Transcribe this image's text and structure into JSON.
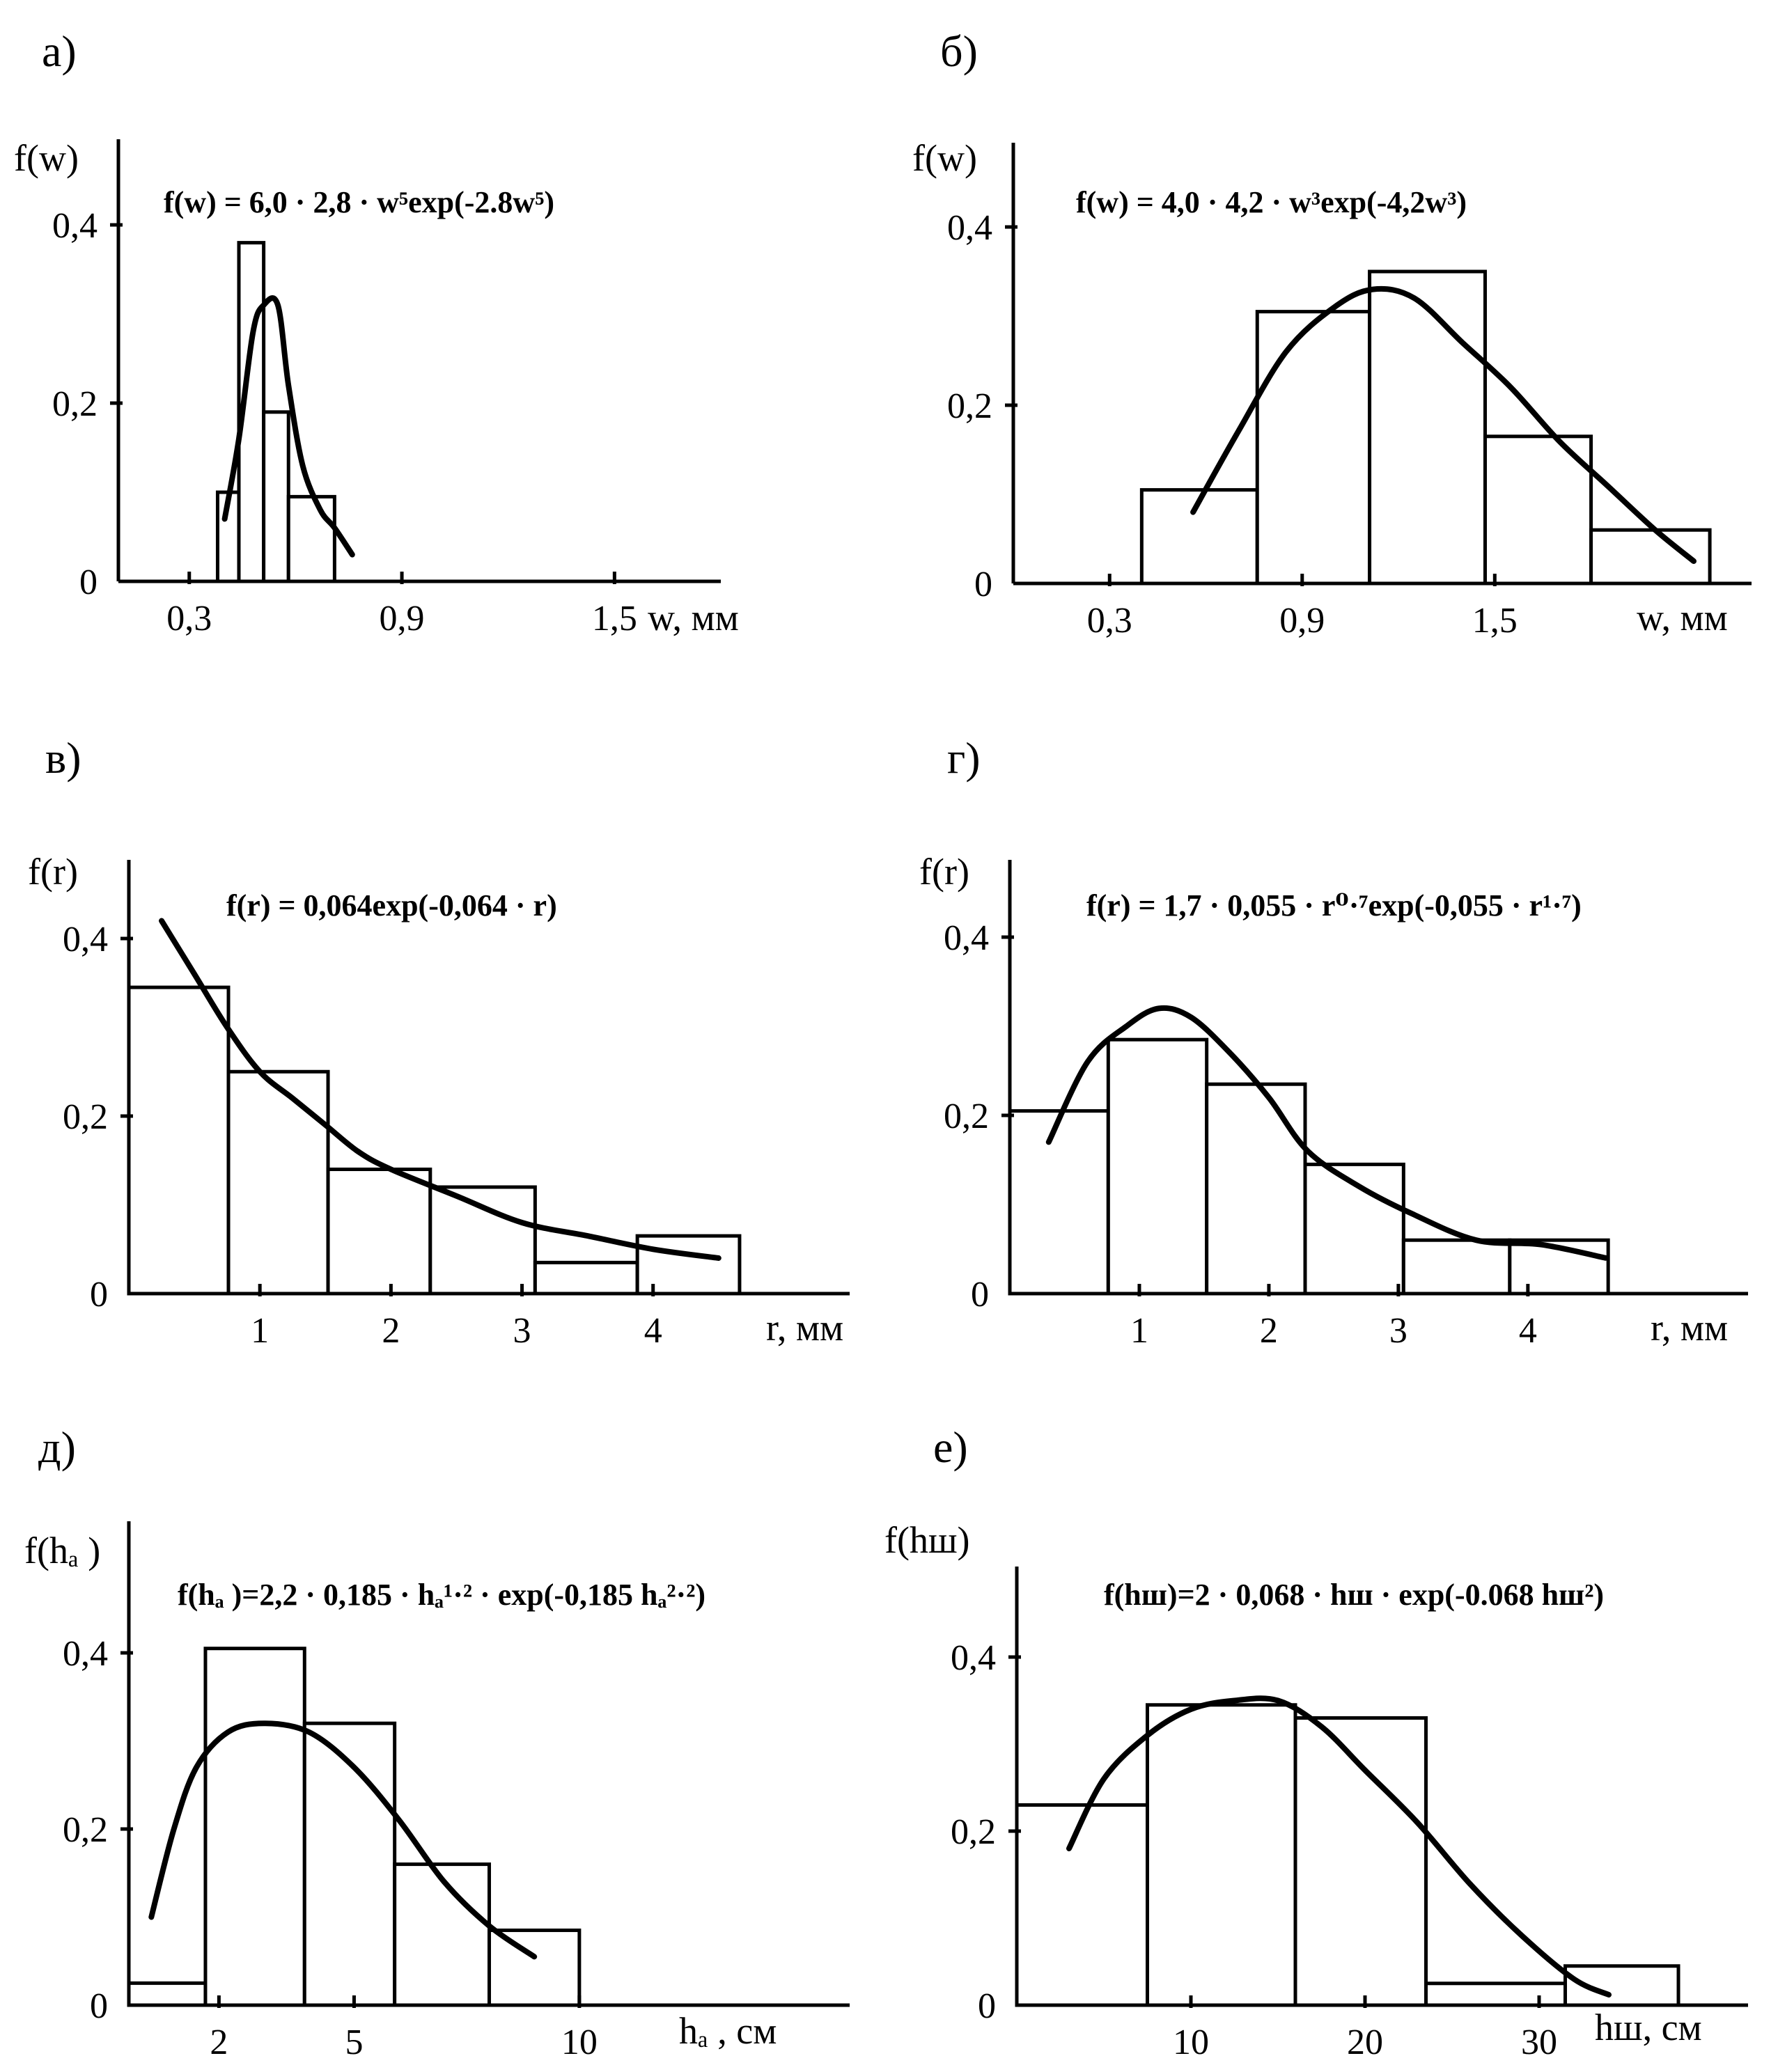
{
  "chart_data": [
    {
      "id": "a",
      "type": "bar",
      "panel_label": "а)",
      "ylabel": "f(w)",
      "xlabel": "w, мм",
      "formula": "f(w) = 6,0 · 2,8 · w⁵exp(-2.8w⁵)",
      "xlim": [
        0.1,
        1.8
      ],
      "ylim": [
        0,
        0.4
      ],
      "x_ticks": [
        {
          "value": 0.3,
          "label": "0,3"
        },
        {
          "value": 0.9,
          "label": "0,9"
        },
        {
          "value": 1.5,
          "label": "1,5"
        }
      ],
      "y_ticks": [
        {
          "value": 0,
          "label": "0"
        },
        {
          "value": 0.2,
          "label": "0,2"
        },
        {
          "value": 0.4,
          "label": "0,4"
        }
      ],
      "bins": [
        {
          "from": 0.38,
          "to": 0.44,
          "value": 0.1
        },
        {
          "from": 0.44,
          "to": 0.51,
          "value": 0.38
        },
        {
          "from": 0.51,
          "to": 0.58,
          "value": 0.19
        },
        {
          "from": 0.58,
          "to": 0.71,
          "value": 0.095
        }
      ],
      "curve": {
        "x": [
          0.4,
          0.44,
          0.48,
          0.51,
          0.55,
          0.58,
          0.62,
          0.67,
          0.71,
          0.76
        ],
        "y": [
          0.07,
          0.16,
          0.28,
          0.31,
          0.31,
          0.22,
          0.13,
          0.08,
          0.06,
          0.03
        ]
      }
    },
    {
      "id": "b",
      "type": "bar",
      "panel_label": "б)",
      "ylabel": "f(w)",
      "xlabel": "w, мм",
      "formula": "f(w) = 4,0 · 4,2 · w³exp(-4,2w³)",
      "xlim": [
        0.0,
        2.3
      ],
      "ylim": [
        0,
        0.4
      ],
      "x_ticks": [
        {
          "value": 0.3,
          "label": "0,3"
        },
        {
          "value": 0.9,
          "label": "0,9"
        },
        {
          "value": 1.5,
          "label": "1,5"
        }
      ],
      "y_ticks": [
        {
          "value": 0,
          "label": "0"
        },
        {
          "value": 0.2,
          "label": "0,2"
        },
        {
          "value": 0.4,
          "label": "0,4"
        }
      ],
      "bins": [
        {
          "from": 0.4,
          "to": 0.76,
          "value": 0.105
        },
        {
          "from": 0.76,
          "to": 1.11,
          "value": 0.305
        },
        {
          "from": 1.11,
          "to": 1.47,
          "value": 0.35
        },
        {
          "from": 1.47,
          "to": 1.8,
          "value": 0.165
        },
        {
          "from": 1.8,
          "to": 2.17,
          "value": 0.06
        }
      ],
      "curve": {
        "x": [
          0.56,
          0.7,
          0.85,
          1.0,
          1.12,
          1.25,
          1.4,
          1.55,
          1.7,
          1.85,
          2.0,
          2.12
        ],
        "y": [
          0.08,
          0.17,
          0.26,
          0.31,
          0.33,
          0.32,
          0.27,
          0.22,
          0.16,
          0.11,
          0.06,
          0.025
        ]
      }
    },
    {
      "id": "v",
      "type": "bar",
      "panel_label": "в)",
      "ylabel": "f(r)",
      "xlabel": "r, мм",
      "formula": "f(r) = 0,064exp(-0,064 · r)",
      "xlim": [
        0.0,
        5.5
      ],
      "ylim": [
        0,
        0.4
      ],
      "x_ticks": [
        {
          "value": 1,
          "label": "1"
        },
        {
          "value": 2,
          "label": "2"
        },
        {
          "value": 3,
          "label": "3"
        },
        {
          "value": 4,
          "label": "4"
        }
      ],
      "y_ticks": [
        {
          "value": 0,
          "label": "0"
        },
        {
          "value": 0.2,
          "label": "0,2"
        },
        {
          "value": 0.4,
          "label": "0,4"
        }
      ],
      "bins": [
        {
          "from": 0.0,
          "to": 0.76,
          "value": 0.345
        },
        {
          "from": 0.76,
          "to": 1.52,
          "value": 0.25
        },
        {
          "from": 1.52,
          "to": 2.3,
          "value": 0.14
        },
        {
          "from": 2.3,
          "to": 3.1,
          "value": 0.12
        },
        {
          "from": 3.1,
          "to": 3.88,
          "value": 0.035
        },
        {
          "from": 3.88,
          "to": 4.66,
          "value": 0.065
        }
      ],
      "curve": {
        "x": [
          0.25,
          0.5,
          0.75,
          1.0,
          1.25,
          1.5,
          1.75,
          2.0,
          2.5,
          3.0,
          3.5,
          4.0,
          4.5
        ],
        "y": [
          0.42,
          0.36,
          0.3,
          0.25,
          0.22,
          0.19,
          0.16,
          0.14,
          0.11,
          0.08,
          0.065,
          0.05,
          0.04
        ]
      }
    },
    {
      "id": "g",
      "type": "bar",
      "panel_label": "г)",
      "ylabel": "f(r)",
      "xlabel": "r, мм",
      "formula": "f(r) = 1,7 · 0,055 · r⁰·⁷exp(-0,055 · r¹·⁷)",
      "xlim": [
        0.0,
        5.7
      ],
      "ylim": [
        0,
        0.4
      ],
      "x_ticks": [
        {
          "value": 1,
          "label": "1"
        },
        {
          "value": 2,
          "label": "2"
        },
        {
          "value": 3,
          "label": "3"
        },
        {
          "value": 4,
          "label": "4"
        }
      ],
      "y_ticks": [
        {
          "value": 0,
          "label": "0"
        },
        {
          "value": 0.2,
          "label": "0,2"
        },
        {
          "value": 0.4,
          "label": "0,4"
        }
      ],
      "bins": [
        {
          "from": 0.0,
          "to": 0.76,
          "value": 0.205
        },
        {
          "from": 0.76,
          "to": 1.52,
          "value": 0.285
        },
        {
          "from": 1.52,
          "to": 2.28,
          "value": 0.235
        },
        {
          "from": 2.28,
          "to": 3.04,
          "value": 0.145
        },
        {
          "from": 3.04,
          "to": 3.86,
          "value": 0.06
        },
        {
          "from": 3.86,
          "to": 4.62,
          "value": 0.06
        }
      ],
      "curve": {
        "x": [
          0.3,
          0.6,
          0.9,
          1.15,
          1.4,
          1.7,
          2.0,
          2.3,
          2.7,
          3.1,
          3.6,
          4.1,
          4.6
        ],
        "y": [
          0.17,
          0.26,
          0.3,
          0.32,
          0.31,
          0.27,
          0.22,
          0.16,
          0.12,
          0.09,
          0.06,
          0.055,
          0.04
        ]
      }
    },
    {
      "id": "d",
      "type": "bar",
      "panel_label": "д)",
      "ylabel": "f(hₐ )",
      "xlabel": "hₐ , см",
      "formula": "f(hₐ )=2,2 · 0,185 · hₐ¹·² · exp(-0,185 hₐ²·²)",
      "xlim": [
        0.0,
        16.0
      ],
      "ylim": [
        0,
        0.4
      ],
      "x_ticks": [
        {
          "value": 2,
          "label": "2"
        },
        {
          "value": 5,
          "label": "5"
        },
        {
          "value": 10,
          "label": "10"
        }
      ],
      "y_ticks": [
        {
          "value": 0,
          "label": "0"
        },
        {
          "value": 0.2,
          "label": "0,2"
        },
        {
          "value": 0.4,
          "label": "0,4"
        }
      ],
      "bins": [
        {
          "from": 0.0,
          "to": 1.7,
          "value": 0.025
        },
        {
          "from": 1.7,
          "to": 3.9,
          "value": 0.405
        },
        {
          "from": 3.9,
          "to": 5.9,
          "value": 0.32
        },
        {
          "from": 5.9,
          "to": 8.0,
          "value": 0.16
        },
        {
          "from": 8.0,
          "to": 10.0,
          "value": 0.085
        }
      ],
      "curve": {
        "x": [
          0.5,
          1.0,
          1.5,
          2.2,
          3.0,
          4.0,
          5.0,
          6.0,
          7.0,
          8.0,
          9.0
        ],
        "y": [
          0.1,
          0.2,
          0.27,
          0.31,
          0.32,
          0.31,
          0.27,
          0.21,
          0.14,
          0.09,
          0.055
        ]
      }
    },
    {
      "id": "e",
      "type": "bar",
      "panel_label": "е)",
      "ylabel": "f(hш)",
      "xlabel": "hш, см",
      "formula": "f(hш)=2 · 0,068 · hш · exp(-0.068 hш²)",
      "xlim": [
        0.0,
        42.0
      ],
      "ylim": [
        0,
        0.4
      ],
      "x_ticks": [
        {
          "value": 10,
          "label": "10"
        },
        {
          "value": 20,
          "label": "20"
        },
        {
          "value": 30,
          "label": "30"
        }
      ],
      "y_ticks": [
        {
          "value": 0,
          "label": "0"
        },
        {
          "value": 0.2,
          "label": "0,2"
        },
        {
          "value": 0.4,
          "label": "0,4"
        }
      ],
      "bins": [
        {
          "from": 0.0,
          "to": 7.5,
          "value": 0.23
        },
        {
          "from": 7.5,
          "to": 16.0,
          "value": 0.345
        },
        {
          "from": 16.0,
          "to": 23.5,
          "value": 0.33
        },
        {
          "from": 23.5,
          "to": 31.5,
          "value": 0.025
        },
        {
          "from": 31.5,
          "to": 38.0,
          "value": 0.045
        }
      ],
      "curve": {
        "x": [
          3.0,
          5.0,
          7.5,
          10.0,
          12.5,
          15.0,
          17.5,
          20.0,
          23.0,
          26.0,
          29.0,
          32.0,
          34.0
        ],
        "y": [
          0.18,
          0.26,
          0.31,
          0.34,
          0.35,
          0.35,
          0.32,
          0.27,
          0.21,
          0.14,
          0.08,
          0.03,
          0.012
        ]
      }
    }
  ]
}
